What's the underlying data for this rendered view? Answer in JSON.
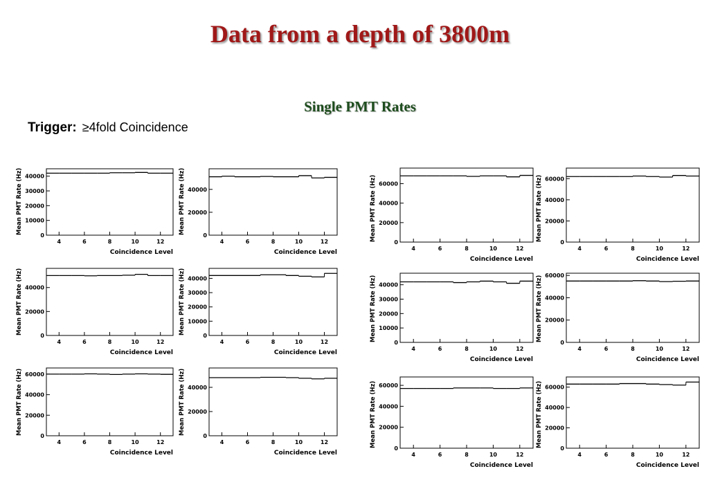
{
  "header": {
    "title": "Data from a depth of 3800m",
    "subtitle": "Single PMT Rates",
    "trigger_label": "Trigger:",
    "trigger_value": "≥4fold Coincidence"
  },
  "chart_data": [
    {
      "type": "histogram",
      "x_label": "Coincidence Level",
      "y_label": "Mean PMT Rate (Hz)",
      "bins": [
        3,
        4,
        5,
        6,
        7,
        8,
        9,
        10,
        11,
        12,
        13
      ],
      "values": [
        42000,
        42000,
        42000,
        42000,
        42000,
        42300,
        42300,
        42500,
        42000,
        42000
      ],
      "xlim": [
        3,
        13
      ],
      "xticks": [
        4,
        6,
        8,
        10,
        12
      ],
      "ylim": [
        0,
        45000
      ],
      "yticks": [
        0,
        10000,
        20000,
        30000,
        40000
      ],
      "color": "#000000"
    },
    {
      "type": "histogram",
      "x_label": "Coincidence Level",
      "y_label": "Mean PMT Rate (Hz)",
      "bins": [
        3,
        4,
        5,
        6,
        7,
        8,
        9,
        10,
        11,
        12,
        13
      ],
      "values": [
        51000,
        51500,
        51000,
        51000,
        51300,
        51000,
        51000,
        52000,
        50000,
        50500
      ],
      "xlim": [
        3,
        13
      ],
      "xticks": [
        4,
        6,
        8,
        10,
        12
      ],
      "ylim": [
        0,
        58000
      ],
      "yticks": [
        0,
        20000,
        40000
      ],
      "color": "#000000"
    },
    {
      "type": "histogram",
      "x_label": "Coincidence Level",
      "y_label": "Mean PMT Rate (Hz)",
      "bins": [
        3,
        4,
        5,
        6,
        7,
        8,
        9,
        10,
        11,
        12,
        13
      ],
      "values": [
        68000,
        68000,
        68000,
        68000,
        68000,
        67500,
        68000,
        68000,
        67000,
        68500
      ],
      "xlim": [
        3,
        13
      ],
      "xticks": [
        4,
        6,
        8,
        10,
        12
      ],
      "ylim": [
        0,
        76000
      ],
      "yticks": [
        0,
        20000,
        40000,
        60000
      ],
      "color": "#000000"
    },
    {
      "type": "histogram",
      "x_label": "Coincidence Level",
      "y_label": "Mean PMT Rate (Hz)",
      "bins": [
        3,
        4,
        5,
        6,
        7,
        8,
        9,
        10,
        11,
        12,
        13
      ],
      "values": [
        62000,
        62000,
        62000,
        62000,
        62000,
        62500,
        62000,
        61500,
        63000,
        62500
      ],
      "xlim": [
        3,
        13
      ],
      "xticks": [
        4,
        6,
        8,
        10,
        12
      ],
      "ylim": [
        0,
        70000
      ],
      "yticks": [
        0,
        20000,
        40000,
        60000
      ],
      "color": "#000000"
    },
    {
      "type": "histogram",
      "x_label": "Coincidence Level",
      "y_label": "Mean PMT Rate (Hz)",
      "bins": [
        3,
        4,
        5,
        6,
        7,
        8,
        9,
        10,
        11,
        12,
        13
      ],
      "values": [
        50000,
        50000,
        50000,
        49800,
        50000,
        50000,
        50300,
        51000,
        50000,
        50000
      ],
      "xlim": [
        3,
        13
      ],
      "xticks": [
        4,
        6,
        8,
        10,
        12
      ],
      "ylim": [
        0,
        56000
      ],
      "yticks": [
        0,
        20000,
        40000
      ],
      "color": "#000000"
    },
    {
      "type": "histogram",
      "x_label": "Coincidence Level",
      "y_label": "Mean PMT Rate (Hz)",
      "bins": [
        3,
        4,
        5,
        6,
        7,
        8,
        9,
        10,
        11,
        12,
        13
      ],
      "values": [
        42000,
        42000,
        42000,
        42000,
        42500,
        42500,
        42000,
        41500,
        41000,
        43500
      ],
      "xlim": [
        3,
        13
      ],
      "xticks": [
        4,
        6,
        8,
        10,
        12
      ],
      "ylim": [
        0,
        47000
      ],
      "yticks": [
        0,
        10000,
        20000,
        30000,
        40000
      ],
      "color": "#000000"
    },
    {
      "type": "histogram",
      "x_label": "Coincidence Level",
      "y_label": "Mean PMT Rate (Hz)",
      "bins": [
        3,
        4,
        5,
        6,
        7,
        8,
        9,
        10,
        11,
        12,
        13
      ],
      "values": [
        42000,
        42000,
        42000,
        42000,
        41500,
        42000,
        42500,
        42000,
        41000,
        42500
      ],
      "xlim": [
        3,
        13
      ],
      "xticks": [
        4,
        6,
        8,
        10,
        12
      ],
      "ylim": [
        0,
        48000
      ],
      "yticks": [
        0,
        10000,
        20000,
        30000,
        40000
      ],
      "color": "#000000"
    },
    {
      "type": "histogram",
      "x_label": "Coincidence Level",
      "y_label": "Mean PMT Rate (Hz)",
      "bins": [
        3,
        4,
        5,
        6,
        7,
        8,
        9,
        10,
        11,
        12,
        13
      ],
      "values": [
        55000,
        55000,
        55000,
        55000,
        55000,
        55300,
        55000,
        54500,
        54800,
        55000
      ],
      "xlim": [
        3,
        13
      ],
      "xticks": [
        4,
        6,
        8,
        10,
        12
      ],
      "ylim": [
        0,
        62000
      ],
      "yticks": [
        0,
        20000,
        40000,
        60000
      ],
      "color": "#000000"
    },
    {
      "type": "histogram",
      "x_label": "Coincidence Level",
      "y_label": "Mean PMT Rate (Hz)",
      "bins": [
        3,
        4,
        5,
        6,
        7,
        8,
        9,
        10,
        11,
        12,
        13
      ],
      "values": [
        60000,
        60000,
        60000,
        60300,
        60000,
        59700,
        60000,
        60300,
        60000,
        59800
      ],
      "xlim": [
        3,
        13
      ],
      "xticks": [
        4,
        6,
        8,
        10,
        12
      ],
      "ylim": [
        0,
        66000
      ],
      "yticks": [
        0,
        20000,
        40000,
        60000
      ],
      "color": "#000000"
    },
    {
      "type": "histogram",
      "x_label": "Coincidence Level",
      "y_label": "Mean PMT Rate (Hz)",
      "bins": [
        3,
        4,
        5,
        6,
        7,
        8,
        9,
        10,
        11,
        12,
        13
      ],
      "values": [
        48000,
        48000,
        48000,
        48000,
        48300,
        48300,
        48000,
        47500,
        47000,
        47500
      ],
      "xlim": [
        3,
        13
      ],
      "xticks": [
        4,
        6,
        8,
        10,
        12
      ],
      "ylim": [
        0,
        56000
      ],
      "yticks": [
        0,
        20000,
        40000
      ],
      "color": "#000000"
    },
    {
      "type": "histogram",
      "x_label": "Coincidence Level",
      "y_label": "Mean PMT Rate (Hz)",
      "bins": [
        3,
        4,
        5,
        6,
        7,
        8,
        9,
        10,
        11,
        12,
        13
      ],
      "values": [
        57000,
        57000,
        57000,
        57000,
        57500,
        57500,
        57500,
        57000,
        57000,
        57500
      ],
      "xlim": [
        3,
        13
      ],
      "xticks": [
        4,
        6,
        8,
        10,
        12
      ],
      "ylim": [
        0,
        68000
      ],
      "yticks": [
        0,
        20000,
        40000,
        60000
      ],
      "color": "#000000"
    },
    {
      "type": "histogram",
      "x_label": "Coincidence Level",
      "y_label": "Mean PMT Rate (Hz)",
      "bins": [
        3,
        4,
        5,
        6,
        7,
        8,
        9,
        10,
        11,
        12,
        13
      ],
      "values": [
        63000,
        63000,
        63000,
        63000,
        63500,
        63500,
        63000,
        62500,
        62000,
        65000
      ],
      "xlim": [
        3,
        13
      ],
      "xticks": [
        4,
        6,
        8,
        10,
        12
      ],
      "ylim": [
        0,
        70000
      ],
      "yticks": [
        0,
        20000,
        40000,
        60000
      ],
      "color": "#000000"
    }
  ]
}
